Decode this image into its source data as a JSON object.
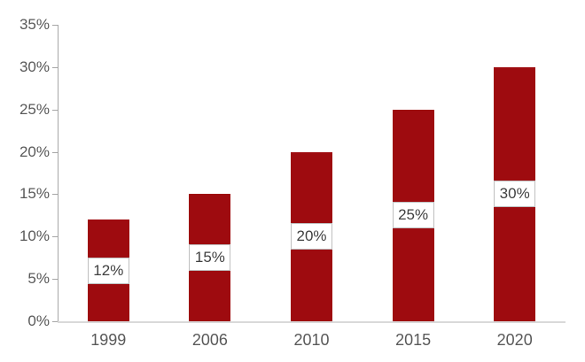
{
  "chart_data": {
    "type": "bar",
    "title": "",
    "xlabel": "",
    "ylabel": "",
    "categories": [
      "1999",
      "2006",
      "2010",
      "2015",
      "2020"
    ],
    "series": [
      {
        "name": "share-percent",
        "values": [
          12,
          15,
          20,
          25,
          30
        ],
        "data_labels": [
          "12%",
          "15%",
          "20%",
          "25%",
          "30%"
        ]
      }
    ],
    "ylim": [
      0,
      35
    ],
    "ytick_step": 5,
    "ytick_labels": [
      "0%",
      "5%",
      "10%",
      "15%",
      "20%",
      "25%",
      "30%",
      "35%"
    ],
    "grid": "off",
    "legend": "none",
    "data_label_position": "inside-center-boxed",
    "colors": {
      "bar_fill": "#9e0b0f",
      "axis_line_vertical": "#a6a6a6",
      "axis_line_horizontal": "#d9d9d9",
      "tick_label_text": "#595959",
      "data_label_text": "#404040",
      "data_label_box_fill": "#ffffff",
      "data_label_box_border": "#bfbfbf",
      "background": "#ffffff"
    }
  }
}
